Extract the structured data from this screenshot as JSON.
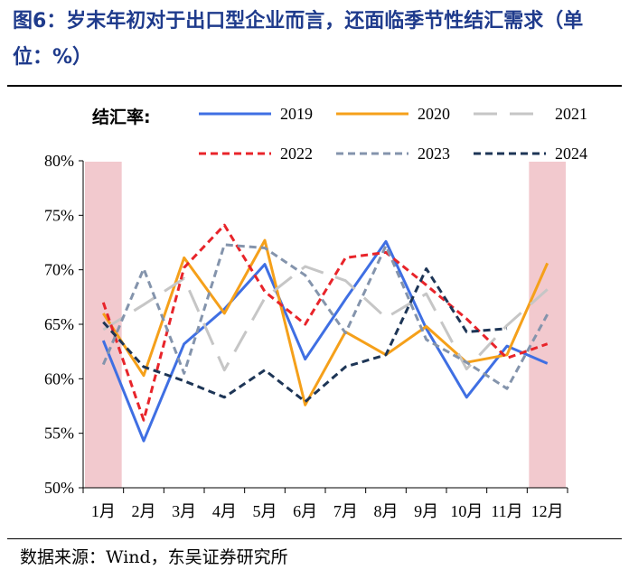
{
  "title": "图6：岁末年初对于出口型企业而言，还面临季节性结汇需求（单位：%）",
  "source": "数据来源：Wind，东吴证券研究所",
  "chart_data": {
    "type": "line",
    "legend_title": "结汇率:",
    "categories": [
      "1月",
      "2月",
      "3月",
      "4月",
      "5月",
      "6月",
      "7月",
      "8月",
      "9月",
      "10月",
      "11月",
      "12月"
    ],
    "ylim": [
      50,
      80
    ],
    "yticks": [
      "50%",
      "55%",
      "60%",
      "65%",
      "70%",
      "75%",
      "80%"
    ],
    "highlighted_months": [
      "1月",
      "12月"
    ],
    "highlight_color": "#f2c9ce",
    "series": [
      {
        "name": "2019",
        "color": "#3f6fe3",
        "dash": "solid",
        "values": [
          63.5,
          54.3,
          63.2,
          66.4,
          70.5,
          61.8,
          67.3,
          72.6,
          64.6,
          58.3,
          63.0,
          61.4
        ]
      },
      {
        "name": "2020",
        "color": "#f5a01a",
        "dash": "solid",
        "values": [
          66.0,
          60.3,
          71.1,
          66.0,
          72.7,
          57.6,
          64.3,
          62.2,
          64.8,
          61.5,
          62.2,
          70.6
        ]
      },
      {
        "name": "2021",
        "color": "#c6c6c6",
        "dash": "longdash",
        "values": [
          64.5,
          66.8,
          69.2,
          60.8,
          67.4,
          70.3,
          69.0,
          65.6,
          67.8,
          60.9,
          64.9,
          68.2
        ]
      },
      {
        "name": "2022",
        "color": "#e8242a",
        "dash": "shortdash",
        "values": [
          67.0,
          56.2,
          70.2,
          74.1,
          68.0,
          65.0,
          71.1,
          71.6,
          68.6,
          65.5,
          61.9,
          63.2
        ]
      },
      {
        "name": "2023",
        "color": "#8494ac",
        "dash": "shortdash",
        "values": [
          61.3,
          70.1,
          60.5,
          72.3,
          72.0,
          69.5,
          64.2,
          72.2,
          63.6,
          61.5,
          59.1,
          65.9
        ]
      },
      {
        "name": "2024",
        "color": "#1d3556",
        "dash": "shortdash",
        "values": [
          65.2,
          61.1,
          59.8,
          58.3,
          60.8,
          57.9,
          61.1,
          62.2,
          70.1,
          64.3,
          64.6,
          null
        ]
      }
    ]
  }
}
